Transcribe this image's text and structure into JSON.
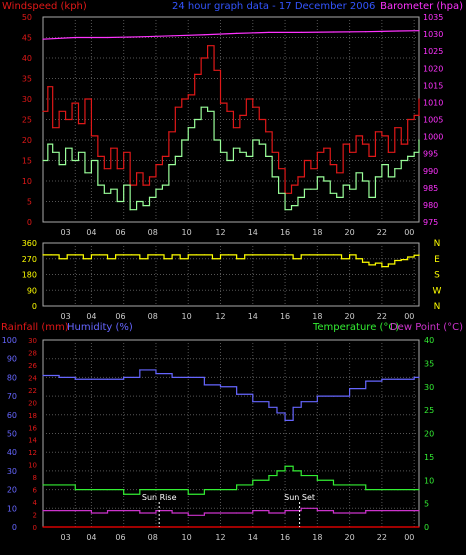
{
  "chart_data": [
    {
      "type": "line",
      "title": "24 hour graph data - 17 December 2006",
      "ylabel": "Windspeed (kph)",
      "y2label": "Barometer (hpa)",
      "ylim": [
        0,
        50
      ],
      "y2lim": [
        975,
        1035
      ],
      "yticks": [
        "0",
        "5",
        "10",
        "15",
        "20",
        "25",
        "30",
        "35",
        "40",
        "45",
        "50"
      ],
      "y2ticks": [
        "975",
        "980",
        "985",
        "990",
        "995",
        "1000",
        "1005",
        "1010",
        "1015",
        "1020",
        "1025",
        "1030",
        "1035"
      ],
      "x_hours": [
        "03",
        "04",
        "06",
        "08",
        "10",
        "12",
        "14",
        "16",
        "18",
        "20",
        "22",
        "00"
      ],
      "xlim": [
        1,
        24.3
      ],
      "grid": true,
      "series": [
        {
          "name": "Windspeed (kph)",
          "role": "gust",
          "color": "#e01818",
          "x": [
            1.0,
            1.3,
            1.6,
            2.0,
            2.4,
            2.8,
            3.2,
            3.6,
            4.0,
            4.4,
            4.8,
            5.2,
            5.6,
            6.0,
            6.4,
            6.8,
            7.2,
            7.6,
            8.0,
            8.4,
            8.8,
            9.2,
            9.6,
            10.0,
            10.4,
            10.8,
            11.2,
            11.6,
            12.0,
            12.4,
            12.8,
            13.2,
            13.6,
            14.0,
            14.4,
            14.8,
            15.2,
            15.6,
            16.0,
            16.4,
            16.8,
            17.2,
            17.6,
            18.0,
            18.4,
            18.8,
            19.2,
            19.6,
            20.0,
            20.4,
            20.8,
            21.2,
            21.6,
            22.0,
            22.4,
            22.8,
            23.2,
            23.6,
            24.0,
            24.3
          ],
          "values": [
            27,
            33,
            23,
            27,
            25,
            29,
            24,
            30,
            21,
            16,
            13,
            18,
            13,
            17,
            9,
            12,
            9,
            11,
            14,
            16,
            22,
            28,
            30,
            31,
            36,
            40,
            43,
            37,
            29,
            27,
            23,
            26,
            30,
            28,
            25,
            22,
            17,
            13,
            7,
            9,
            11,
            15,
            13,
            17,
            18,
            14,
            12,
            19,
            17,
            21,
            19,
            16,
            22,
            21,
            17,
            23,
            19,
            25,
            26,
            30
          ]
        },
        {
          "name": "Windspeed avg",
          "role": "average",
          "color": "#9aff9a",
          "x": [
            1.0,
            1.3,
            1.6,
            2.0,
            2.4,
            2.8,
            3.2,
            3.6,
            4.0,
            4.4,
            4.8,
            5.2,
            5.6,
            6.0,
            6.4,
            6.8,
            7.2,
            7.6,
            8.0,
            8.4,
            8.8,
            9.2,
            9.6,
            10.0,
            10.4,
            10.8,
            11.2,
            11.6,
            12.0,
            12.4,
            12.8,
            13.2,
            13.6,
            14.0,
            14.4,
            14.8,
            15.2,
            15.6,
            16.0,
            16.4,
            16.8,
            17.2,
            17.6,
            18.0,
            18.4,
            18.8,
            19.2,
            19.6,
            20.0,
            20.4,
            20.8,
            21.2,
            21.6,
            22.0,
            22.4,
            22.8,
            23.2,
            23.6,
            24.0,
            24.3
          ],
          "values": [
            15,
            19,
            17,
            14,
            18,
            15,
            17,
            12,
            15,
            9,
            7,
            8,
            5,
            9,
            3,
            5,
            4,
            6,
            8,
            9,
            14,
            16,
            20,
            23,
            25,
            28,
            27,
            20,
            17,
            15,
            18,
            17,
            16,
            20,
            19,
            16,
            11,
            7,
            3,
            4,
            6,
            8,
            8,
            11,
            10,
            7,
            6,
            9,
            8,
            12,
            10,
            6,
            11,
            14,
            11,
            13,
            15,
            16,
            17,
            20
          ]
        },
        {
          "name": "Barometer (hpa)",
          "color": "#ff33ff",
          "axis": "right",
          "x": [
            1,
            3,
            5,
            7,
            9,
            11,
            13,
            15,
            17,
            19,
            21,
            23,
            24.3
          ],
          "values": [
            1028.5,
            1029,
            1029,
            1029.2,
            1029.5,
            1029.8,
            1030.2,
            1030.5,
            1030.5,
            1030.6,
            1030.7,
            1030.9,
            1031
          ]
        }
      ]
    },
    {
      "type": "scatter",
      "ylim": [
        0,
        360
      ],
      "yticks": [
        "0",
        "90",
        "180",
        "270",
        "360"
      ],
      "compass": [
        "N",
        "W",
        "S",
        "E",
        "N"
      ],
      "x_hours": [
        "03",
        "04",
        "06",
        "08",
        "10",
        "12",
        "14",
        "16",
        "18",
        "20",
        "22",
        "00"
      ],
      "xlim": [
        1,
        24.3
      ],
      "series": [
        {
          "name": "Wind direction",
          "color": "#ffff00",
          "x": [
            1.0,
            1.5,
            2.0,
            2.5,
            3.0,
            3.5,
            4.0,
            4.5,
            5.0,
            5.5,
            6.0,
            6.5,
            7.0,
            7.5,
            8.0,
            8.5,
            9.0,
            9.5,
            10.0,
            10.5,
            11.0,
            11.5,
            12.0,
            12.5,
            13.0,
            13.5,
            14.0,
            14.5,
            15.0,
            15.5,
            16.0,
            16.5,
            17.0,
            17.5,
            18.0,
            18.5,
            19.0,
            19.5,
            20.0,
            20.4,
            20.8,
            21.2,
            21.6,
            22.0,
            22.4,
            22.8,
            23.2,
            23.6,
            24.0,
            24.3
          ],
          "values": [
            292,
            292,
            270,
            292,
            292,
            270,
            292,
            292,
            270,
            292,
            292,
            292,
            270,
            292,
            292,
            270,
            292,
            270,
            292,
            292,
            292,
            270,
            292,
            292,
            270,
            292,
            292,
            292,
            292,
            292,
            292,
            270,
            292,
            292,
            292,
            292,
            292,
            270,
            292,
            270,
            250,
            235,
            245,
            225,
            240,
            260,
            265,
            280,
            290,
            292
          ]
        }
      ]
    },
    {
      "type": "line",
      "labels": {
        "rainfall": "Rainfall (mm)",
        "humidity": "Humidity (%)",
        "temperature": "Temperature (°C)",
        "dewpoint": "Dew Point (°C)"
      },
      "y_humidity_ticks": [
        "0",
        "10",
        "20",
        "30",
        "40",
        "50",
        "60",
        "70",
        "80",
        "90",
        "100"
      ],
      "y_rain_ticks": [
        "0",
        "2",
        "4",
        "6",
        "8",
        "10",
        "12",
        "14",
        "16",
        "18",
        "20",
        "22",
        "24",
        "26",
        "28",
        "30"
      ],
      "y_temp_ticks": [
        "0",
        "5",
        "10",
        "15",
        "20",
        "25",
        "30",
        "35",
        "40"
      ],
      "humidity_lim": [
        0,
        100
      ],
      "rain_lim": [
        0,
        30
      ],
      "temp_lim": [
        0,
        40
      ],
      "x_hours": [
        "03",
        "04",
        "06",
        "08",
        "10",
        "12",
        "14",
        "16",
        "18",
        "20",
        "22",
        "00"
      ],
      "xlim": [
        1,
        24.3
      ],
      "annotations": [
        {
          "text": "Sun Rise",
          "x": 8.2
        },
        {
          "text": "Sun Set",
          "x": 16.9
        }
      ],
      "series": [
        {
          "name": "Humidity (%)",
          "color": "#6666ff",
          "x": [
            1,
            2,
            3,
            4,
            5,
            6,
            7,
            8,
            9,
            10,
            11,
            12,
            13,
            14,
            15,
            15.5,
            16,
            16.5,
            17,
            18,
            19,
            20,
            21,
            22,
            23,
            24,
            24.3
          ],
          "values": [
            81,
            80,
            79,
            79,
            79,
            80,
            84,
            82,
            80,
            80,
            76,
            75,
            71,
            67,
            64,
            61,
            57,
            64,
            67,
            70,
            70,
            74,
            78,
            79,
            79,
            80,
            80
          ]
        },
        {
          "name": "Temperature (°C)",
          "color": "#33ee33",
          "x": [
            1,
            2,
            3,
            4,
            5,
            6,
            7,
            8,
            9,
            10,
            11,
            12,
            13,
            14,
            15,
            15.5,
            16,
            16.5,
            17,
            18,
            19,
            20,
            21,
            22,
            23,
            24,
            24.3
          ],
          "values": [
            9,
            9,
            8,
            8,
            8,
            7,
            8,
            8,
            8,
            7,
            8,
            8,
            9,
            10,
            11,
            12,
            13,
            12,
            11,
            10,
            9,
            9,
            8,
            8,
            8,
            8,
            8
          ]
        },
        {
          "name": "Dew Point (°C)",
          "color": "#cc33cc",
          "x": [
            1,
            2,
            3,
            4,
            5,
            6,
            7,
            8,
            9,
            10,
            11,
            12,
            13,
            14,
            15,
            16,
            17,
            18,
            19,
            20,
            21,
            22,
            23,
            24,
            24.3
          ],
          "values": [
            3.5,
            3.5,
            3.5,
            3,
            3.5,
            3.5,
            3,
            3.5,
            3,
            2.5,
            3,
            3,
            3,
            3.5,
            3,
            3.5,
            4,
            3.5,
            3,
            3,
            3.5,
            3.5,
            3.5,
            3.5,
            3.5
          ]
        },
        {
          "name": "Rainfall (mm)",
          "color": "#ff0000",
          "x": [
            1,
            24.3
          ],
          "values": [
            0,
            0
          ]
        }
      ]
    }
  ]
}
